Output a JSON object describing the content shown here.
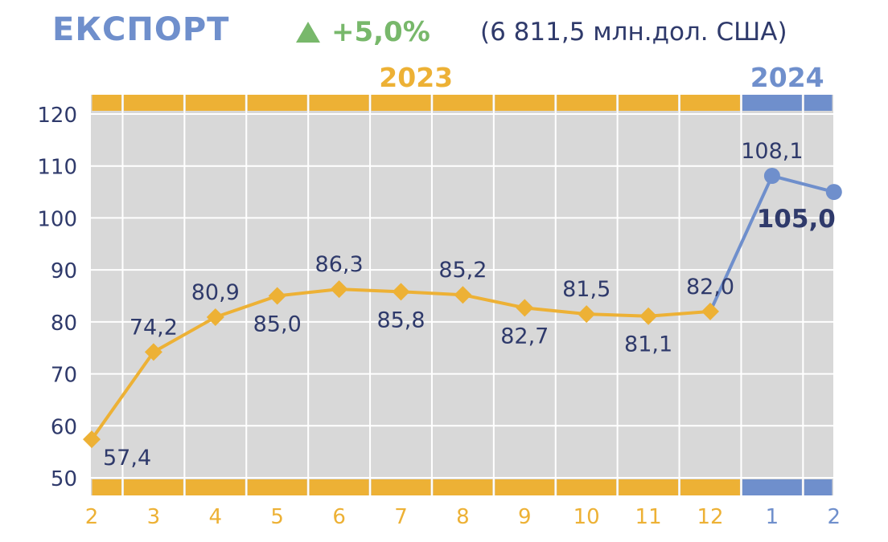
{
  "header": {
    "title": "ЕКСПОРТ",
    "change_icon": "triangle-up-icon",
    "change": "+5,0%",
    "total": "(6 811,5 млн.дол. США)"
  },
  "colors": {
    "year2023": "#edb135",
    "year2024": "#6f8fcc",
    "label": "#2f3a6b",
    "grid_bg": "#d8d8d8",
    "positive": "#78b86b"
  },
  "chart_data": {
    "type": "line",
    "title": "ЕКСПОРТ",
    "years": [
      {
        "label": "2023",
        "categories": [
          "2",
          "3",
          "4",
          "5",
          "6",
          "7",
          "8",
          "9",
          "10",
          "11",
          "12"
        ]
      },
      {
        "label": "2024",
        "categories": [
          "1",
          "2"
        ]
      }
    ],
    "categories": [
      "2",
      "3",
      "4",
      "5",
      "6",
      "7",
      "8",
      "9",
      "10",
      "11",
      "12",
      "1",
      "2"
    ],
    "series": [
      {
        "values": [
          57.4,
          74.2,
          80.9,
          85.0,
          86.3,
          85.8,
          85.2,
          82.7,
          81.5,
          81.1,
          82.0,
          null,
          null
        ]
      },
      {
        "values": [
          null,
          null,
          null,
          null,
          null,
          null,
          null,
          null,
          null,
          null,
          82.0,
          108.1,
          105.0
        ]
      }
    ],
    "data_labels": [
      "57,4",
      "74,2",
      "80,9",
      "85,0",
      "86,3",
      "85,8",
      "85,2",
      "82,7",
      "81,5",
      "81,1",
      "82,0",
      "108,1",
      "105,0"
    ],
    "label_positions": [
      "below",
      "above",
      "above",
      "below",
      "above",
      "below",
      "above",
      "below",
      "above",
      "below",
      "above",
      "above",
      "below"
    ],
    "yticks": [
      50,
      60,
      70,
      80,
      90,
      100,
      110,
      120
    ],
    "ylim": [
      50,
      120
    ],
    "grid": true,
    "xlabel": "",
    "ylabel": ""
  }
}
